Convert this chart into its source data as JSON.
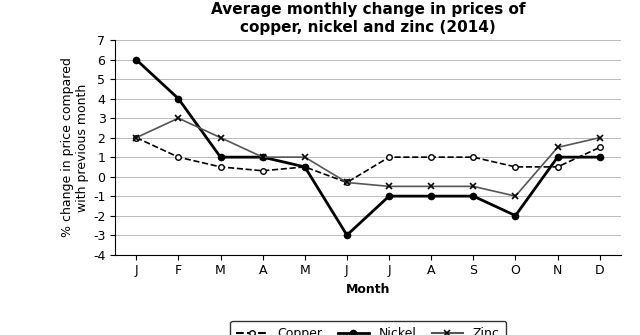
{
  "title": "Average monthly change in prices of\ncopper, nickel and zinc (2014)",
  "xlabel": "Month",
  "ylabel": "% change in price compared\nwith previous month",
  "months": [
    "J",
    "F",
    "M",
    "A",
    "M",
    "J",
    "J",
    "A",
    "S",
    "O",
    "N",
    "D"
  ],
  "copper": [
    2.0,
    1.0,
    0.5,
    0.3,
    0.5,
    -0.3,
    1.0,
    1.0,
    1.0,
    0.5,
    0.5,
    1.5
  ],
  "nickel": [
    6.0,
    4.0,
    1.0,
    1.0,
    0.5,
    -3.0,
    -1.0,
    -1.0,
    -1.0,
    -2.0,
    1.0,
    1.0
  ],
  "zinc": [
    2.0,
    3.0,
    2.0,
    1.0,
    1.0,
    -0.3,
    -0.5,
    -0.5,
    -0.5,
    -1.0,
    1.5,
    2.0
  ],
  "ylim": [
    -4,
    7
  ],
  "yticks": [
    -4,
    -3,
    -2,
    -1,
    0,
    1,
    2,
    3,
    4,
    5,
    6,
    7
  ],
  "background_color": "#ffffff",
  "grid_color": "#bbbbbb",
  "title_fontsize": 11,
  "axis_label_fontsize": 9,
  "tick_fontsize": 9,
  "legend_fontsize": 9
}
